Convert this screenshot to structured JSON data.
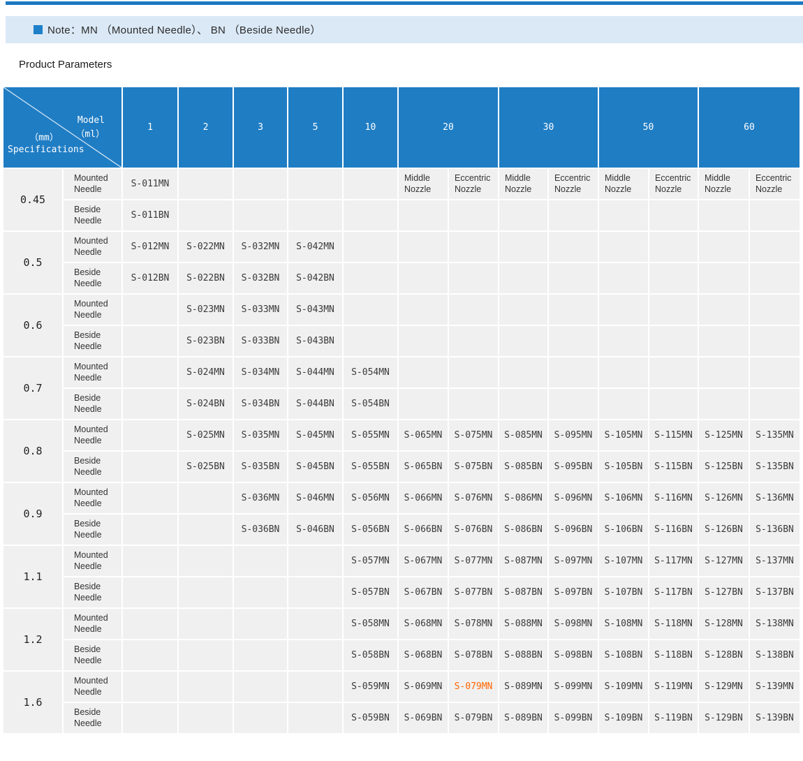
{
  "note": {
    "text": "Note：MN （Mounted Needle）、 BN （Beside Needle）"
  },
  "heading": "Product Parameters",
  "colors": {
    "accent": "#1f7dc4",
    "top_line": "#1c78c1",
    "note_bg": "#dbe9f6",
    "note_square": "#1e80c9",
    "cell_bg": "#f0f0f0",
    "grid_line": "#ffffff",
    "highlight": "#ff6600"
  },
  "table": {
    "corner": {
      "model_line1": "Model",
      "model_line2": "（ml）",
      "spec_line1": "（mm）",
      "spec_line2": "Specifications"
    },
    "columns": [
      {
        "label": "1",
        "span": 1
      },
      {
        "label": "2",
        "span": 1
      },
      {
        "label": "3",
        "span": 1
      },
      {
        "label": "5",
        "span": 1
      },
      {
        "label": "10",
        "span": 1
      },
      {
        "label": "20",
        "span": 2
      },
      {
        "label": "30",
        "span": 2
      },
      {
        "label": "50",
        "span": 2
      },
      {
        "label": "60",
        "span": 2
      }
    ],
    "nozzle_labels": {
      "middle": "Middle Nozzle",
      "eccentric": "Eccentric Nozzle"
    },
    "row_labels": {
      "mounted": "Mounted Needle",
      "beside": "Beside Needle"
    },
    "highlight": {
      "model": "S-079MN"
    },
    "groups": [
      {
        "spec": "0.45",
        "mounted": [
          "S-011MN",
          "",
          "",
          "",
          "",
          "",
          "",
          "",
          "",
          "",
          "",
          "",
          ""
        ],
        "beside": [
          "S-011BN",
          "",
          "",
          "",
          "",
          "",
          "",
          "",
          "",
          "",
          "",
          "",
          ""
        ]
      },
      {
        "spec": "0.5",
        "mounted": [
          "S-012MN",
          "S-022MN",
          "S-032MN",
          "S-042MN",
          "",
          "",
          "",
          "",
          "",
          "",
          "",
          "",
          ""
        ],
        "beside": [
          "S-012BN",
          "S-022BN",
          "S-032BN",
          "S-042BN",
          "",
          "",
          "",
          "",
          "",
          "",
          "",
          "",
          ""
        ]
      },
      {
        "spec": "0.6",
        "mounted": [
          "",
          "S-023MN",
          "S-033MN",
          "S-043MN",
          "",
          "",
          "",
          "",
          "",
          "",
          "",
          "",
          ""
        ],
        "beside": [
          "",
          "S-023BN",
          "S-033BN",
          "S-043BN",
          "",
          "",
          "",
          "",
          "",
          "",
          "",
          "",
          ""
        ]
      },
      {
        "spec": "0.7",
        "mounted": [
          "",
          "S-024MN",
          "S-034MN",
          "S-044MN",
          "S-054MN",
          "",
          "",
          "",
          "",
          "",
          "",
          "",
          ""
        ],
        "beside": [
          "",
          "S-024BN",
          "S-034BN",
          "S-044BN",
          "S-054BN",
          "",
          "",
          "",
          "",
          "",
          "",
          "",
          ""
        ]
      },
      {
        "spec": "0.8",
        "mounted": [
          "",
          "S-025MN",
          "S-035MN",
          "S-045MN",
          "S-055MN",
          "S-065MN",
          "S-075MN",
          "S-085MN",
          "S-095MN",
          "S-105MN",
          "S-115MN",
          "S-125MN",
          "S-135MN"
        ],
        "beside": [
          "",
          "S-025BN",
          "S-035BN",
          "S-045BN",
          "S-055BN",
          "S-065BN",
          "S-075BN",
          "S-085BN",
          "S-095BN",
          "S-105BN",
          "S-115BN",
          "S-125BN",
          "S-135BN"
        ]
      },
      {
        "spec": "0.9",
        "mounted": [
          "",
          "",
          "S-036MN",
          "S-046MN",
          "S-056MN",
          "S-066MN",
          "S-076MN",
          "S-086MN",
          "S-096MN",
          "S-106MN",
          "S-116MN",
          "S-126MN",
          "S-136MN"
        ],
        "beside": [
          "",
          "",
          "S-036BN",
          "S-046BN",
          "S-056BN",
          "S-066BN",
          "S-076BN",
          "S-086BN",
          "S-096BN",
          "S-106BN",
          "S-116BN",
          "S-126BN",
          "S-136BN"
        ]
      },
      {
        "spec": "1.1",
        "mounted": [
          "",
          "",
          "",
          "",
          "S-057MN",
          "S-067MN",
          "S-077MN",
          "S-087MN",
          "S-097MN",
          "S-107MN",
          "S-117MN",
          "S-127MN",
          "S-137MN"
        ],
        "beside": [
          "",
          "",
          "",
          "",
          "S-057BN",
          "S-067BN",
          "S-077BN",
          "S-087BN",
          "S-097BN",
          "S-107BN",
          "S-117BN",
          "S-127BN",
          "S-137BN"
        ]
      },
      {
        "spec": "1.2",
        "mounted": [
          "",
          "",
          "",
          "",
          "S-058MN",
          "S-068MN",
          "S-078MN",
          "S-088MN",
          "S-098MN",
          "S-108MN",
          "S-118MN",
          "S-128MN",
          "S-138MN"
        ],
        "beside": [
          "",
          "",
          "",
          "",
          "S-058BN",
          "S-068BN",
          "S-078BN",
          "S-088BN",
          "S-098BN",
          "S-108BN",
          "S-118BN",
          "S-128BN",
          "S-138BN"
        ]
      },
      {
        "spec": "1.6",
        "mounted": [
          "",
          "",
          "",
          "",
          "S-059MN",
          "S-069MN",
          "S-079MN",
          "S-089MN",
          "S-099MN",
          "S-109MN",
          "S-119MN",
          "S-129MN",
          "S-139MN"
        ],
        "beside": [
          "",
          "",
          "",
          "",
          "S-059BN",
          "S-069BN",
          "S-079BN",
          "S-089BN",
          "S-099BN",
          "S-109BN",
          "S-119BN",
          "S-129BN",
          "S-139BN"
        ]
      }
    ]
  }
}
